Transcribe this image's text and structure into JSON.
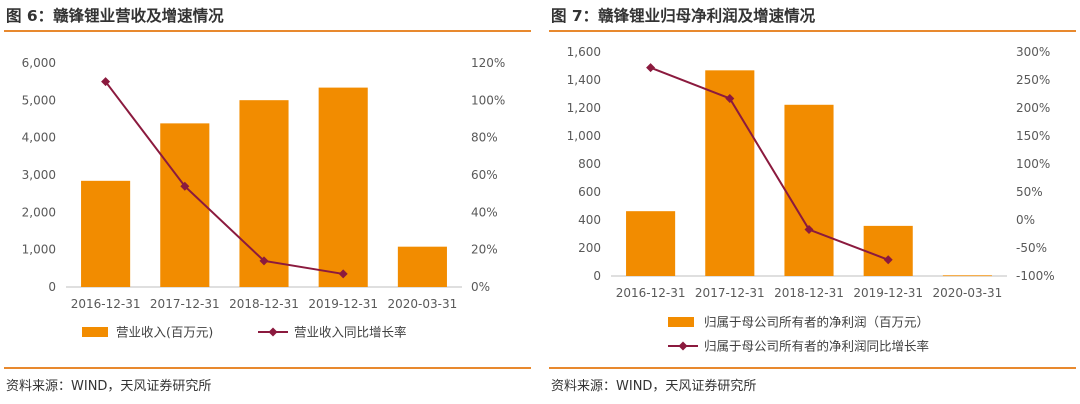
{
  "figures": [
    {
      "title": "图 6：赣锋锂业营收及增速情况",
      "source": "资料来源：WIND，天风证券研究所",
      "chart_data": {
        "type": "bar",
        "categories": [
          "2016-12-31",
          "2017-12-31",
          "2018-12-31",
          "2019-12-31",
          "2020-03-31"
        ],
        "series": [
          {
            "name": "营业收入(百万元)",
            "type": "bar",
            "axis": "left",
            "color": "#F28C00",
            "values": [
              2844,
              4383,
              5004,
              5341,
              1080
            ]
          },
          {
            "name": "营业收入同比增长率",
            "type": "line",
            "axis": "right",
            "color": "#8B1A3E",
            "values": [
              1.1,
              0.54,
              0.14,
              0.07,
              null
            ]
          }
        ],
        "y_left": {
          "min": 0,
          "max": 6000,
          "ticks": [
            "0",
            "1,000",
            "2,000",
            "3,000",
            "4,000",
            "5,000",
            "6,000"
          ]
        },
        "y_right": {
          "min": 0,
          "max": 1.2,
          "ticks": [
            "0%",
            "20%",
            "40%",
            "60%",
            "80%",
            "100%",
            "120%"
          ]
        },
        "legend": "bottom",
        "grid": false
      }
    },
    {
      "title": "图 7：赣锋锂业归母净利润及增速情况",
      "source": "资料来源：WIND，天风证券研究所",
      "chart_data": {
        "type": "bar",
        "categories": [
          "2016-12-31",
          "2017-12-31",
          "2018-12-31",
          "2019-12-31",
          "2020-03-31"
        ],
        "series": [
          {
            "name": "归属于母公司所有者的净利润（百万元）",
            "type": "bar",
            "axis": "left",
            "color": "#F28C00",
            "values": [
              463,
              1469,
              1223,
              358,
              5
            ]
          },
          {
            "name": "归属于母公司所有者的净利润同比增长率",
            "type": "line",
            "axis": "right",
            "color": "#8B1A3E",
            "values": [
              2.72,
              2.17,
              -0.17,
              -0.71,
              null
            ]
          }
        ],
        "y_left": {
          "min": 0,
          "max": 1600,
          "ticks": [
            "0",
            "200",
            "400",
            "600",
            "800",
            "1,000",
            "1,200",
            "1,400",
            "1,600"
          ]
        },
        "y_right": {
          "min": -1.0,
          "max": 3.0,
          "ticks": [
            "-100%",
            "-50%",
            "0%",
            "50%",
            "100%",
            "150%",
            "200%",
            "250%",
            "300%"
          ]
        },
        "legend": "bottom-stacked",
        "grid": false
      }
    }
  ]
}
